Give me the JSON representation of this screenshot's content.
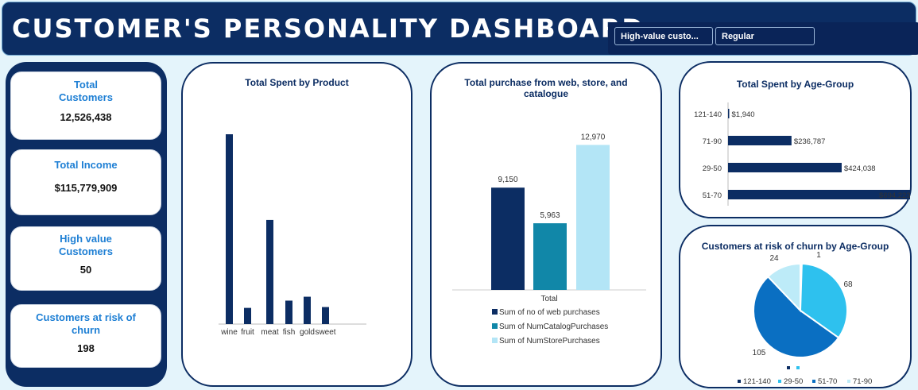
{
  "header": {
    "title": "CUSTOMER'S PERSONALITY DASHBOARD",
    "slicer_items": [
      "High-value custo...",
      "Regular"
    ]
  },
  "kpis": [
    {
      "label": "Total\nCustomers",
      "value": "12,526,438"
    },
    {
      "label": "Total Income",
      "value": "$115,779,909"
    },
    {
      "label": "High value\nCustomers",
      "value": "50"
    },
    {
      "label": "Customers at risk of\nchurn",
      "value": "198"
    }
  ],
  "colors": {
    "navy": "#0c2d63",
    "teal": "#1187a8",
    "light_blue": "#b3e5f6",
    "header_bg": "#0c2d63",
    "kpi_label": "#1e7fd4"
  },
  "chart_data": [
    {
      "type": "bar",
      "title": "Total Spent by Product",
      "categories": [
        "wine",
        "fruit",
        "meat",
        "fish",
        "gold",
        "sweet"
      ],
      "values": [
        680000,
        58000,
        373000,
        84000,
        98000,
        61000
      ],
      "ylim": [
        0,
        700000
      ],
      "grid": false
    },
    {
      "type": "bar",
      "title": "Total purchase from web, store, and catalogue",
      "categories": [
        "Total"
      ],
      "series": [
        {
          "name": "Sum of no of web purchases",
          "values": [
            9150
          ],
          "label": "9,150"
        },
        {
          "name": "Sum of NumCatalogPurchases",
          "values": [
            5963
          ],
          "label": "5,963"
        },
        {
          "name": "Sum of NumStorePurchases",
          "values": [
            12970
          ],
          "label": "12,970"
        }
      ],
      "ylim": [
        0,
        14000
      ],
      "legend": "bottom"
    },
    {
      "type": "bar",
      "orientation": "horizontal",
      "title": "Total Spent by Age-Group",
      "categories": [
        "121-140",
        "71-90",
        "29-50",
        "51-70"
      ],
      "values": [
        1940,
        236787,
        424038,
        694223
      ],
      "labels": [
        "$1,940",
        "$236,787",
        "$424,038",
        "$694,223"
      ],
      "xlim": [
        0,
        700000
      ]
    },
    {
      "type": "pie",
      "title": "Customers at risk of churn by Age-Group",
      "categories": [
        "121-140",
        "29-50",
        "51-70",
        "71-90"
      ],
      "values": [
        1,
        68,
        105,
        24
      ],
      "labels": [
        "1",
        "68",
        "105",
        "24"
      ],
      "legend": "bottom"
    }
  ]
}
